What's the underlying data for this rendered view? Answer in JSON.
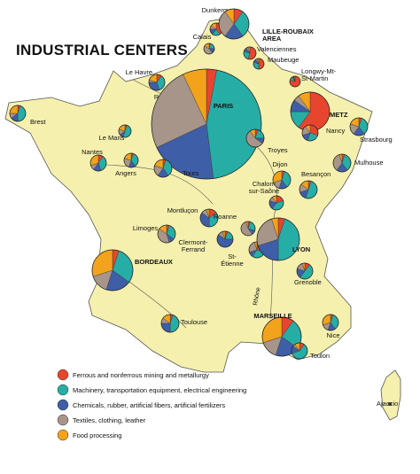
{
  "title": "INDUSTRIAL CENTERS",
  "legend": [
    {
      "label": "Ferrous and nonferrous mining and metallurgy",
      "color": "#e8452e"
    },
    {
      "label": "Machinery, transportation equipment, electrical engineering",
      "color": "#26ada6"
    },
    {
      "label": "Chemicals, rubber, artificial fibers, artificial fertilizers",
      "color": "#3f5ea8"
    },
    {
      "label": "Textiles, clothing, leather",
      "color": "#a8958a"
    },
    {
      "label": "Food processing",
      "color": "#f2a31c"
    }
  ],
  "cities": [
    {
      "name": [
        "Dunkerque"
      ],
      "size": 7,
      "shares": [
        40,
        20,
        15,
        10,
        15
      ]
    },
    {
      "name": [
        "Calais"
      ],
      "size": 6,
      "shares": [
        5,
        20,
        15,
        45,
        15
      ]
    },
    {
      "name": [
        "LILLE-ROUBAIX",
        "AREA"
      ],
      "size": 17,
      "shares": [
        10,
        30,
        20,
        30,
        10
      ]
    },
    {
      "name": [
        "Valenciennes"
      ],
      "size": 7,
      "shares": [
        55,
        25,
        10,
        5,
        5
      ]
    },
    {
      "name": [
        "Maubeuge"
      ],
      "size": 6,
      "shares": [
        50,
        30,
        10,
        5,
        5
      ]
    },
    {
      "name": [
        "Le Havre"
      ],
      "size": 9,
      "shares": [
        10,
        35,
        30,
        5,
        20
      ]
    },
    {
      "name": [
        "Rouen"
      ],
      "size": 10,
      "shares": [
        10,
        30,
        20,
        25,
        15
      ]
    },
    {
      "name": [
        "PARIS"
      ],
      "size": 62,
      "shares": [
        3,
        45,
        20,
        25,
        7
      ]
    },
    {
      "name": [
        "Brest"
      ],
      "size": 9,
      "shares": [
        5,
        45,
        15,
        10,
        25
      ]
    },
    {
      "name": [
        "Longwy-Mt-",
        "St-Martin"
      ],
      "size": 6,
      "shares": [
        80,
        10,
        5,
        2,
        3
      ]
    },
    {
      "name": [
        "METZ"
      ],
      "size": 22,
      "shares": [
        60,
        15,
        10,
        5,
        10
      ]
    },
    {
      "name": [
        "Nancy"
      ],
      "size": 9,
      "shares": [
        30,
        25,
        15,
        20,
        10
      ]
    },
    {
      "name": [
        "Strasbourg"
      ],
      "size": 10,
      "shares": [
        5,
        35,
        20,
        20,
        20
      ]
    },
    {
      "name": [
        "Le Mans"
      ],
      "size": 7,
      "shares": [
        5,
        50,
        10,
        15,
        20
      ]
    },
    {
      "name": [
        "Nantes"
      ],
      "size": 9,
      "shares": [
        10,
        35,
        15,
        10,
        30
      ]
    },
    {
      "name": [
        "Angers"
      ],
      "size": 8,
      "shares": [
        5,
        35,
        15,
        25,
        20
      ]
    },
    {
      "name": [
        "Tours"
      ],
      "size": 10,
      "shares": [
        5,
        35,
        20,
        20,
        20
      ]
    },
    {
      "name": [
        "Troyes"
      ],
      "size": 10,
      "shares": [
        5,
        20,
        10,
        55,
        10
      ]
    },
    {
      "name": [
        "Dijon"
      ],
      "size": 10,
      "shares": [
        5,
        35,
        15,
        15,
        30
      ]
    },
    {
      "name": [
        "Besançon"
      ],
      "size": 10,
      "shares": [
        5,
        50,
        15,
        15,
        15
      ]
    },
    {
      "name": [
        "Mulhouse"
      ],
      "size": 10,
      "shares": [
        5,
        35,
        20,
        35,
        5
      ]
    },
    {
      "name": [
        "Chalon-",
        "sur-Saône"
      ],
      "size": 8,
      "shares": [
        20,
        40,
        20,
        10,
        10
      ]
    },
    {
      "name": [
        "Montluçon"
      ],
      "size": 10,
      "shares": [
        15,
        35,
        35,
        10,
        5
      ]
    },
    {
      "name": [
        "Roanne"
      ],
      "size": 8,
      "shares": [
        5,
        25,
        10,
        55,
        5
      ]
    },
    {
      "name": [
        "Limoges"
      ],
      "size": 10,
      "shares": [
        5,
        30,
        10,
        40,
        15
      ]
    },
    {
      "name": [
        "Clermont-",
        "Ferrand"
      ],
      "size": 9,
      "shares": [
        5,
        20,
        60,
        10,
        5
      ]
    },
    {
      "name": [
        "St-",
        "Étienne"
      ],
      "size": 9,
      "shares": [
        30,
        30,
        10,
        25,
        5
      ]
    },
    {
      "name": [
        "LYON"
      ],
      "size": 24,
      "shares": [
        5,
        45,
        20,
        25,
        5
      ]
    },
    {
      "name": [
        "BORDEAUX"
      ],
      "size": 23,
      "shares": [
        5,
        30,
        20,
        15,
        30
      ]
    },
    {
      "name": [
        "Grenoble"
      ],
      "size": 9,
      "shares": [
        10,
        50,
        20,
        15,
        5
      ]
    },
    {
      "name": [
        "Toulouse"
      ],
      "size": 10,
      "shares": [
        5,
        45,
        25,
        10,
        15
      ]
    },
    {
      "name": [
        "MARSEILLE"
      ],
      "size": 22,
      "shares": [
        10,
        25,
        20,
        15,
        30
      ]
    },
    {
      "name": [
        "Nice"
      ],
      "size": 9,
      "shares": [
        5,
        35,
        15,
        15,
        30
      ]
    },
    {
      "name": [
        "Toulon"
      ],
      "size": 9,
      "shares": [
        10,
        60,
        15,
        5,
        10
      ]
    }
  ],
  "places": [
    {
      "name": "Ajaccio"
    }
  ],
  "river": "Rhône"
}
